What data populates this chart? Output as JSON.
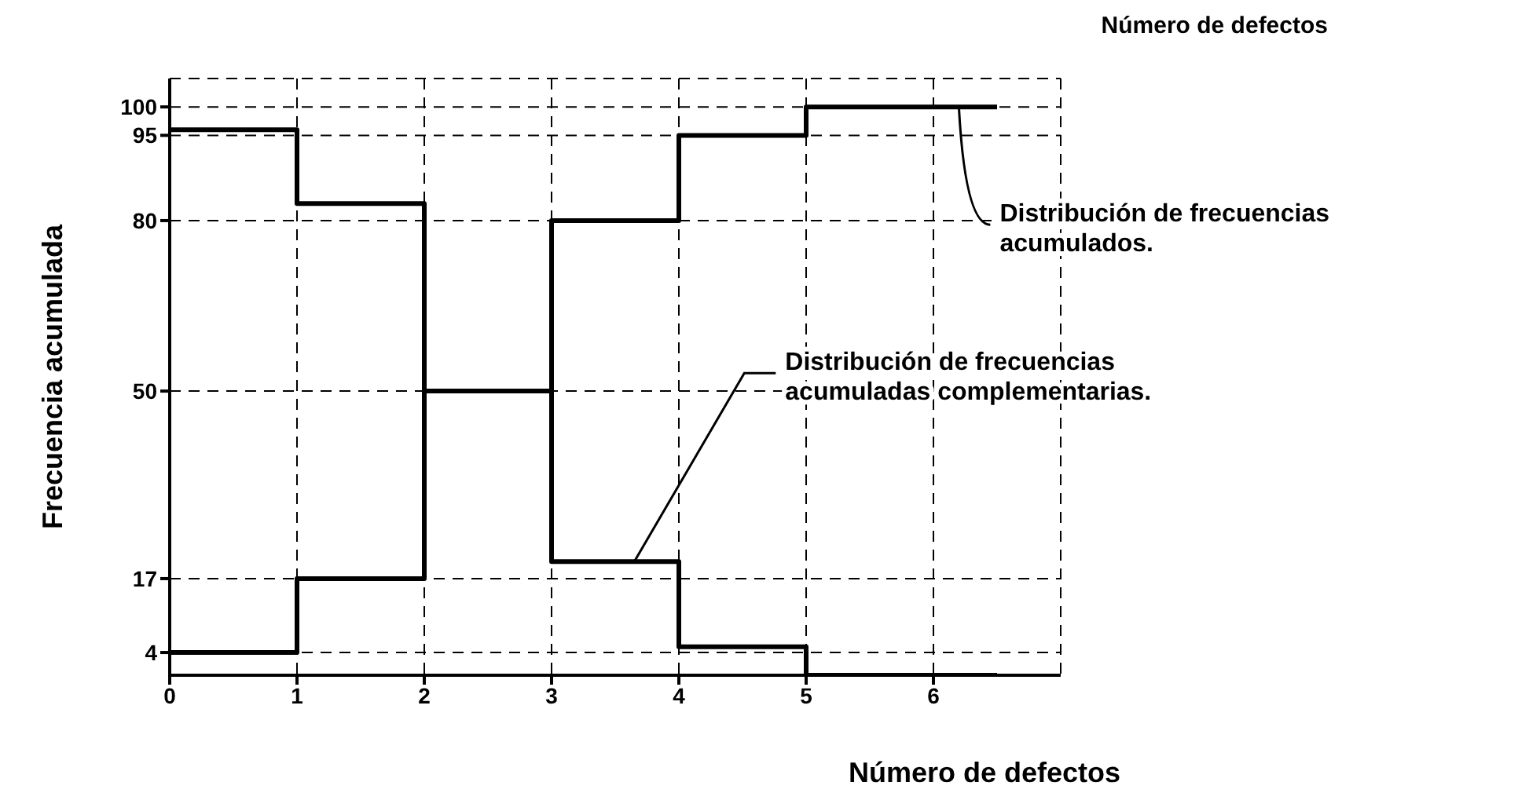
{
  "chart_data": {
    "type": "step",
    "xlabel": "Número de defectos",
    "ylabel": "Frecuencia acumulada",
    "xlim": [
      0,
      7
    ],
    "xticks": [
      0,
      1,
      2,
      3,
      4,
      5,
      6
    ],
    "ylim": [
      0,
      105
    ],
    "yticks": [
      4,
      17,
      50,
      80,
      95,
      100
    ],
    "grid": true,
    "marker": "none",
    "line_style": "solid",
    "series": [
      {
        "color": "#000000",
        "x": [
          0,
          1,
          2,
          3,
          4,
          5,
          6.5
        ],
        "values": [
          4,
          17,
          50,
          80,
          95,
          100,
          100
        ]
      },
      {
        "color": "#000000",
        "x": [
          0,
          1,
          2,
          3,
          4,
          5,
          6.5
        ],
        "values": [
          96,
          83,
          50,
          20,
          5,
          0,
          0
        ]
      }
    ],
    "annotations": [
      "Número de defectos",
      {
        "text": "Distribución de frecuencias acumulados.",
        "x": 6.2,
        "y": 100
      },
      {
        "text": "Distribución de frecuencias acumuladas complementarias.",
        "x": 3.65,
        "y": 20
      }
    ]
  }
}
